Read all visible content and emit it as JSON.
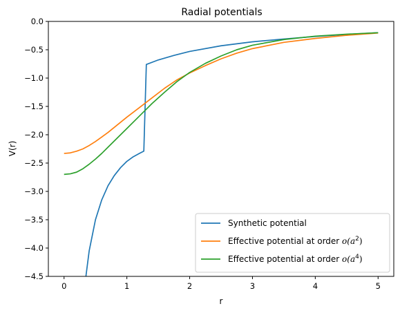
{
  "chart_data": {
    "type": "line",
    "title": "Radial potentials",
    "xlabel": "r",
    "ylabel": "V(r)",
    "xlim": [
      -0.25,
      5.25
    ],
    "ylim": [
      -4.5,
      0.0
    ],
    "xticks": [
      0,
      1,
      2,
      3,
      4,
      5
    ],
    "xtick_labels": [
      "0",
      "1",
      "2",
      "3",
      "4",
      "5"
    ],
    "yticks": [
      0.0,
      -0.5,
      -1.0,
      -1.5,
      -2.0,
      -2.5,
      -3.0,
      -3.5,
      -4.0,
      -4.5
    ],
    "ytick_labels": [
      "0.0",
      "−0.5",
      "−1.0",
      "−1.5",
      "−2.0",
      "−2.5",
      "−3.0",
      "−3.5",
      "−4.0",
      "−4.5"
    ],
    "grid": false,
    "legend_position": "lower-right",
    "series": [
      {
        "name": "Synthetic potential",
        "legend_plain": "Synthetic potential",
        "color": "#1f77b4",
        "points": [
          [
            0.3,
            -5.2
          ],
          [
            0.35,
            -4.48
          ],
          [
            0.4,
            -4.05
          ],
          [
            0.5,
            -3.5
          ],
          [
            0.6,
            -3.15
          ],
          [
            0.7,
            -2.9
          ],
          [
            0.8,
            -2.72
          ],
          [
            0.9,
            -2.58
          ],
          [
            1.0,
            -2.47
          ],
          [
            1.1,
            -2.39
          ],
          [
            1.2,
            -2.33
          ],
          [
            1.27,
            -2.29
          ],
          [
            1.31,
            -0.76
          ],
          [
            1.5,
            -0.68
          ],
          [
            1.75,
            -0.6
          ],
          [
            2.0,
            -0.53
          ],
          [
            2.5,
            -0.43
          ],
          [
            3.0,
            -0.36
          ],
          [
            3.5,
            -0.31
          ],
          [
            4.0,
            -0.265
          ],
          [
            4.5,
            -0.23
          ],
          [
            5.0,
            -0.2
          ]
        ]
      },
      {
        "name": "Effective potential at order o(a²)",
        "legend_plain": "Effective potential at order ",
        "legend_math": "o(a",
        "legend_exp": "2",
        "color": "#ff7f0e",
        "points": [
          [
            0.0,
            -2.33
          ],
          [
            0.1,
            -2.32
          ],
          [
            0.2,
            -2.29
          ],
          [
            0.3,
            -2.25
          ],
          [
            0.4,
            -2.19
          ],
          [
            0.5,
            -2.12
          ],
          [
            0.6,
            -2.04
          ],
          [
            0.7,
            -1.96
          ],
          [
            0.8,
            -1.87
          ],
          [
            0.9,
            -1.78
          ],
          [
            1.0,
            -1.69
          ],
          [
            1.2,
            -1.52
          ],
          [
            1.4,
            -1.35
          ],
          [
            1.6,
            -1.18
          ],
          [
            1.8,
            -1.03
          ],
          [
            2.0,
            -0.91
          ],
          [
            2.25,
            -0.78
          ],
          [
            2.5,
            -0.66
          ],
          [
            2.75,
            -0.56
          ],
          [
            3.0,
            -0.48
          ],
          [
            3.5,
            -0.37
          ],
          [
            4.0,
            -0.3
          ],
          [
            4.5,
            -0.245
          ],
          [
            5.0,
            -0.205
          ]
        ]
      },
      {
        "name": "Effective potential at order o(a⁴)",
        "legend_plain": "Effective potential at order ",
        "legend_math": "o(a",
        "legend_exp": "4",
        "color": "#2ca02c",
        "points": [
          [
            0.0,
            -2.7
          ],
          [
            0.1,
            -2.69
          ],
          [
            0.2,
            -2.66
          ],
          [
            0.3,
            -2.6
          ],
          [
            0.4,
            -2.52
          ],
          [
            0.5,
            -2.43
          ],
          [
            0.6,
            -2.33
          ],
          [
            0.7,
            -2.22
          ],
          [
            0.8,
            -2.11
          ],
          [
            0.9,
            -2.0
          ],
          [
            1.0,
            -1.89
          ],
          [
            1.2,
            -1.67
          ],
          [
            1.4,
            -1.45
          ],
          [
            1.6,
            -1.25
          ],
          [
            1.8,
            -1.06
          ],
          [
            2.0,
            -0.9
          ],
          [
            2.25,
            -0.74
          ],
          [
            2.5,
            -0.61
          ],
          [
            2.75,
            -0.5
          ],
          [
            3.0,
            -0.42
          ],
          [
            3.5,
            -0.32
          ],
          [
            4.0,
            -0.26
          ],
          [
            4.5,
            -0.225
          ],
          [
            5.0,
            -0.2
          ]
        ]
      }
    ]
  }
}
